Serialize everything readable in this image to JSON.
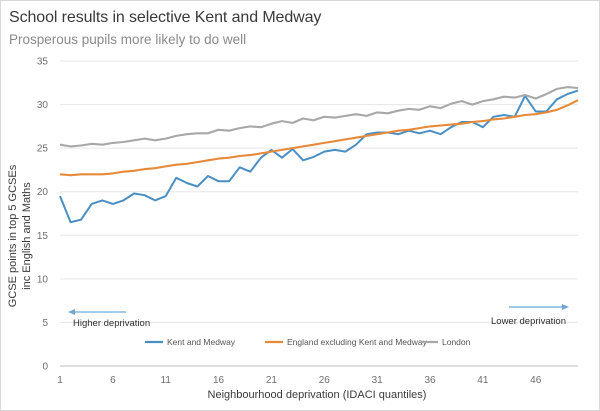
{
  "header": {
    "title": "School results in selective Kent and Medway",
    "subtitle": "Prosperous pupils more likely to do well"
  },
  "chart_data": {
    "type": "line",
    "title": "School results in selective Kent and Medway",
    "subtitle": "Prosperous pupils more likely to do well",
    "xlabel": "Neighbourhood deprivation (IDACI quantiles)",
    "ylabel": "GCSE points in top 5 GCSEs inc English and Maths",
    "xlim": [
      1,
      50
    ],
    "ylim": [
      0,
      35
    ],
    "xticks": [
      1,
      6,
      11,
      16,
      21,
      26,
      31,
      36,
      41,
      46
    ],
    "yticks": [
      0,
      5,
      10,
      15,
      20,
      25,
      30,
      35
    ],
    "grid": "horizontal",
    "legend": "bottom",
    "annotations": {
      "left": "Higher deprivation",
      "right": "Lower deprivation"
    },
    "x": [
      1,
      2,
      3,
      4,
      5,
      6,
      7,
      8,
      9,
      10,
      11,
      12,
      13,
      14,
      15,
      16,
      17,
      18,
      19,
      20,
      21,
      22,
      23,
      24,
      25,
      26,
      27,
      28,
      29,
      30,
      31,
      32,
      33,
      34,
      35,
      36,
      37,
      38,
      39,
      40,
      41,
      42,
      43,
      44,
      45,
      46,
      47,
      48,
      49,
      50
    ],
    "series": [
      {
        "name": "Kent and Medway",
        "color": "#4a8fc4",
        "values": [
          19.5,
          16.5,
          16.8,
          18.6,
          19.0,
          18.6,
          19.0,
          19.8,
          19.6,
          19.0,
          19.5,
          21.6,
          21.0,
          20.6,
          21.8,
          21.2,
          21.2,
          22.8,
          22.3,
          23.9,
          24.8,
          23.9,
          24.9,
          23.6,
          24.0,
          24.6,
          24.8,
          24.6,
          25.4,
          26.6,
          26.8,
          26.8,
          26.6,
          27.0,
          26.7,
          27.0,
          26.6,
          27.4,
          28.0,
          28.0,
          27.4,
          28.6,
          28.8,
          28.6,
          31.0,
          29.2,
          29.2,
          30.6,
          31.2,
          31.6
        ]
      },
      {
        "name": "England excluding Kent and Medway",
        "color": "#e68a3a",
        "values": [
          22.0,
          21.9,
          22.0,
          22.0,
          22.0,
          22.1,
          22.3,
          22.4,
          22.6,
          22.7,
          22.9,
          23.1,
          23.2,
          23.4,
          23.6,
          23.8,
          23.9,
          24.1,
          24.2,
          24.4,
          24.6,
          24.8,
          25.0,
          25.2,
          25.4,
          25.6,
          25.8,
          26.0,
          26.2,
          26.4,
          26.6,
          26.8,
          27.0,
          27.1,
          27.3,
          27.5,
          27.6,
          27.7,
          27.8,
          28.0,
          28.1,
          28.3,
          28.4,
          28.6,
          28.8,
          28.9,
          29.1,
          29.4,
          29.9,
          30.5
        ]
      },
      {
        "name": "London",
        "color": "#a8a8a8",
        "values": [
          25.4,
          25.2,
          25.3,
          25.5,
          25.4,
          25.6,
          25.7,
          25.9,
          26.1,
          25.9,
          26.1,
          26.4,
          26.6,
          26.7,
          26.7,
          27.1,
          27.0,
          27.3,
          27.5,
          27.4,
          27.8,
          28.1,
          27.9,
          28.4,
          28.2,
          28.6,
          28.5,
          28.7,
          28.9,
          28.7,
          29.1,
          29.0,
          29.3,
          29.5,
          29.4,
          29.8,
          29.6,
          30.1,
          30.4,
          30.0,
          30.4,
          30.6,
          30.9,
          30.8,
          31.1,
          30.7,
          31.2,
          31.8,
          32.0,
          31.9
        ]
      }
    ]
  }
}
